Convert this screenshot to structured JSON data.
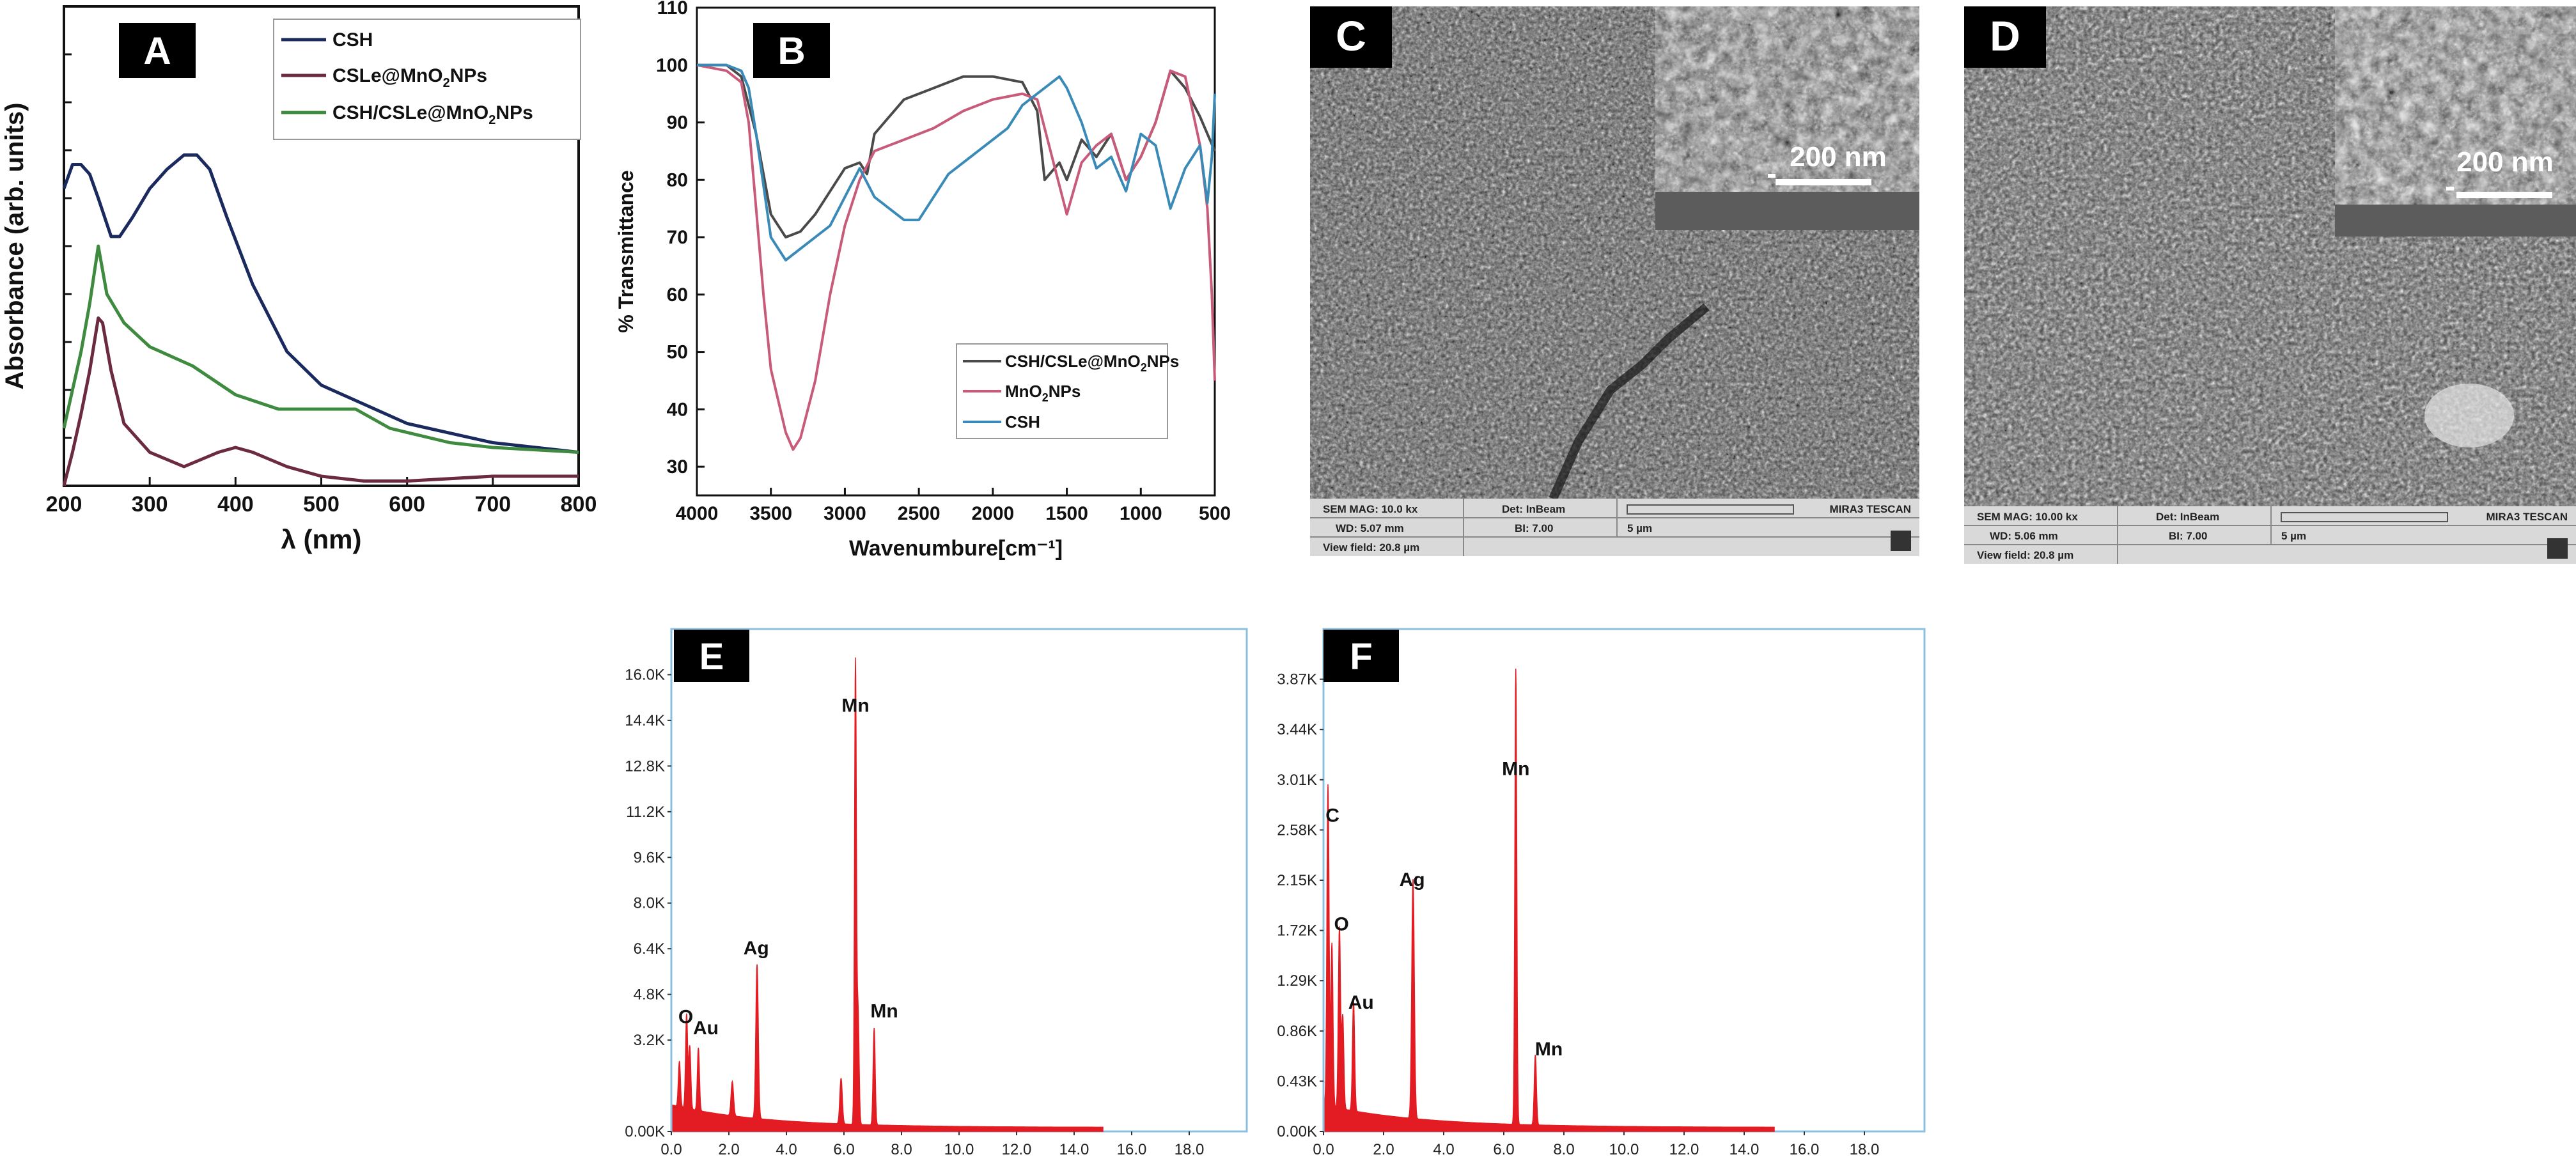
{
  "panel_labels": {
    "a": "A",
    "b": "B",
    "c": "C",
    "d": "D",
    "e": "E",
    "f": "F"
  },
  "colors": {
    "csh_uv": "#1b2a5e",
    "cslemno2_uv": "#6b2a3e",
    "cshcsle_uv": "#3e8a3e",
    "ftir_csh_cslemno2": "#4a4a4a",
    "ftir_mno2": "#c85a7a",
    "ftir_csh": "#3a8ab8",
    "eds_red": "#e31c23",
    "eds_frame": "#8cc0e0"
  },
  "sem": {
    "c": {
      "scale_inset": "200 nm",
      "footer": {
        "mag": "SEM MAG: 10.0 kx",
        "det": "Det: InBeam",
        "wd": "WD: 5.07 mm",
        "bi": "BI: 7.00",
        "vf": "View field: 20.8 µm",
        "scale": "5 µm",
        "brand": "MIRA3 TESCAN"
      }
    },
    "d": {
      "scale_inset": "200 nm",
      "footer": {
        "mag": "SEM MAG: 10.00 kx",
        "det": "Det: InBeam",
        "wd": "WD: 5.06 mm",
        "bi": "BI: 7.00",
        "vf": "View field: 20.8 µm",
        "scale": "5 µm",
        "brand": "MIRA3 TESCAN"
      }
    }
  },
  "chart_data": [
    {
      "id": "A",
      "type": "line",
      "xlabel": "λ (nm)",
      "ylabel": "Absorbance (arb. units)",
      "xlim": [
        200,
        800
      ],
      "xticks": [
        200,
        300,
        400,
        500,
        600,
        700,
        800
      ],
      "ylim": [
        0,
        1
      ],
      "legend_position": "top-right",
      "series": [
        {
          "name": "CSH",
          "color": "#1b2a5e",
          "x": [
            200,
            210,
            220,
            230,
            240,
            255,
            265,
            280,
            300,
            320,
            340,
            355,
            370,
            390,
            420,
            460,
            500,
            550,
            600,
            700,
            800
          ],
          "y": [
            0.62,
            0.67,
            0.67,
            0.65,
            0.6,
            0.52,
            0.52,
            0.56,
            0.62,
            0.66,
            0.69,
            0.69,
            0.66,
            0.56,
            0.42,
            0.28,
            0.21,
            0.17,
            0.13,
            0.09,
            0.07
          ]
        },
        {
          "name": "CSLe@MnO2NPs",
          "color": "#6b2a3e",
          "x": [
            200,
            210,
            220,
            230,
            240,
            245,
            255,
            270,
            300,
            340,
            380,
            400,
            420,
            460,
            500,
            550,
            600,
            700,
            800
          ],
          "y": [
            0.0,
            0.07,
            0.15,
            0.24,
            0.35,
            0.34,
            0.24,
            0.13,
            0.07,
            0.04,
            0.07,
            0.08,
            0.07,
            0.04,
            0.02,
            0.01,
            0.01,
            0.02,
            0.02
          ]
        },
        {
          "name": "CSH/CSLe@MnO2NPs",
          "color": "#3e8a3e",
          "x": [
            200,
            210,
            220,
            230,
            240,
            250,
            270,
            300,
            350,
            400,
            450,
            500,
            540,
            580,
            650,
            700,
            800
          ],
          "y": [
            0.12,
            0.2,
            0.28,
            0.38,
            0.5,
            0.4,
            0.34,
            0.29,
            0.25,
            0.19,
            0.16,
            0.16,
            0.16,
            0.12,
            0.09,
            0.08,
            0.07
          ]
        }
      ]
    },
    {
      "id": "B",
      "type": "line",
      "xlabel": "Wavenumbure[cm⁻¹]",
      "ylabel": "% Transmittance",
      "xlim": [
        4000,
        500
      ],
      "xticks": [
        4000,
        3500,
        3000,
        2500,
        2000,
        1500,
        1000,
        500
      ],
      "ylim": [
        25,
        110
      ],
      "yticks": [
        30,
        40,
        50,
        60,
        70,
        80,
        90,
        100,
        110
      ],
      "legend_position": "bottom-right",
      "series": [
        {
          "name": "CSH/CSLe@MnO2NPs",
          "color": "#4a4a4a",
          "x": [
            4000,
            3800,
            3700,
            3600,
            3500,
            3400,
            3300,
            3200,
            3100,
            3000,
            2900,
            2850,
            2800,
            2600,
            2400,
            2200,
            2000,
            1800,
            1700,
            1650,
            1550,
            1500,
            1400,
            1300,
            1200,
            1100,
            1000,
            900,
            800,
            700,
            600,
            500
          ],
          "y": [
            100,
            100,
            98,
            88,
            74,
            70,
            71,
            74,
            78,
            82,
            83,
            81,
            88,
            94,
            96,
            98,
            98,
            97,
            92,
            80,
            83,
            80,
            87,
            84,
            88,
            80,
            84,
            90,
            99,
            96,
            91,
            85
          ]
        },
        {
          "name": "MnO2NPs",
          "color": "#c85a7a",
          "x": [
            4000,
            3800,
            3700,
            3650,
            3600,
            3550,
            3500,
            3400,
            3350,
            3300,
            3200,
            3100,
            3000,
            2900,
            2800,
            2700,
            2600,
            2400,
            2200,
            2000,
            1800,
            1700,
            1600,
            1550,
            1500,
            1400,
            1300,
            1200,
            1100,
            1000,
            900,
            800,
            700,
            600,
            550,
            520,
            500
          ],
          "y": [
            100,
            99,
            97,
            90,
            75,
            60,
            47,
            36,
            33,
            35,
            45,
            60,
            72,
            80,
            85,
            86,
            87,
            89,
            92,
            94,
            95,
            94,
            84,
            79,
            74,
            83,
            86,
            88,
            80,
            84,
            90,
            99,
            98,
            86,
            75,
            60,
            45
          ]
        },
        {
          "name": "CSH",
          "color": "#3a8ab8",
          "x": [
            4000,
            3800,
            3700,
            3650,
            3600,
            3500,
            3400,
            3300,
            3200,
            3100,
            3000,
            2900,
            2800,
            2700,
            2600,
            2500,
            2300,
            2100,
            1900,
            1800,
            1700,
            1600,
            1550,
            1500,
            1400,
            1300,
            1200,
            1100,
            1000,
            900,
            800,
            700,
            600,
            550,
            520,
            500
          ],
          "y": [
            100,
            100,
            99,
            96,
            88,
            70,
            66,
            68,
            70,
            72,
            77,
            82,
            77,
            75,
            73,
            73,
            81,
            85,
            89,
            93,
            95,
            97,
            98,
            96,
            90,
            82,
            84,
            78,
            88,
            86,
            75,
            82,
            86,
            76,
            84,
            95
          ]
        }
      ]
    },
    {
      "id": "E",
      "type": "area",
      "xlim": [
        0,
        20
      ],
      "xticks": [
        "0.0",
        "2.0",
        "4.0",
        "6.0",
        "8.0",
        "10.0",
        "12.0",
        "14.0",
        "16.0",
        "18.0"
      ],
      "ylim": [
        0,
        17.6
      ],
      "yticks": [
        "0.00K",
        "3.2K",
        "4.8K",
        "6.4K",
        "8.0K",
        "9.6K",
        "11.2K",
        "12.8K",
        "14.4K",
        "16.0K"
      ],
      "ytick_values": [
        0,
        3.2,
        4.8,
        6.4,
        8.0,
        9.6,
        11.2,
        12.8,
        14.4,
        16.0
      ],
      "peaks": [
        {
          "x": 0.28,
          "y": 1.6,
          "w": 0.05
        },
        {
          "x": 0.53,
          "y": 3.3,
          "w": 0.05
        },
        {
          "x": 0.64,
          "y": 2.2,
          "w": 0.05
        },
        {
          "x": 0.94,
          "y": 2.2,
          "w": 0.05
        },
        {
          "x": 2.12,
          "y": 1.2,
          "w": 0.06
        },
        {
          "x": 2.98,
          "y": 5.4,
          "w": 0.06
        },
        {
          "x": 5.9,
          "y": 1.6,
          "w": 0.06
        },
        {
          "x": 6.4,
          "y": 16.2,
          "w": 0.045
        },
        {
          "x": 6.49,
          "y": 4.0,
          "w": 0.05
        },
        {
          "x": 7.05,
          "y": 3.4,
          "w": 0.05
        }
      ],
      "annotations": [
        {
          "label": "O",
          "x": 0.5,
          "y": 3.8
        },
        {
          "label": "Au",
          "x": 1.2,
          "y": 3.4
        },
        {
          "label": "Ag",
          "x": 2.95,
          "y": 6.2
        },
        {
          "label": "Mn",
          "x": 6.4,
          "y": 14.7
        },
        {
          "label": "Mn",
          "x": 7.4,
          "y": 4.0
        }
      ]
    },
    {
      "id": "F",
      "type": "area",
      "xlim": [
        0,
        20
      ],
      "xticks": [
        "0.0",
        "2.0",
        "4.0",
        "6.0",
        "8.0",
        "10.0",
        "12.0",
        "14.0",
        "16.0",
        "18.0"
      ],
      "ylim": [
        0,
        4.3
      ],
      "yticks": [
        "0.00K",
        "0.43K",
        "0.86K",
        "1.29K",
        "1.72K",
        "2.15K",
        "2.58K",
        "3.01K",
        "3.44K",
        "3.87K"
      ],
      "ytick_values": [
        0,
        0.43,
        0.86,
        1.29,
        1.72,
        2.15,
        2.58,
        3.01,
        3.44,
        3.87
      ],
      "peaks": [
        {
          "x": 0.15,
          "y": 2.75,
          "w": 0.05
        },
        {
          "x": 0.28,
          "y": 1.4,
          "w": 0.05
        },
        {
          "x": 0.53,
          "y": 1.55,
          "w": 0.05
        },
        {
          "x": 0.64,
          "y": 0.8,
          "w": 0.05
        },
        {
          "x": 1.0,
          "y": 0.95,
          "w": 0.05
        },
        {
          "x": 2.98,
          "y": 2.05,
          "w": 0.06
        },
        {
          "x": 6.4,
          "y": 3.9,
          "w": 0.045
        },
        {
          "x": 7.05,
          "y": 0.6,
          "w": 0.05
        }
      ],
      "annotations": [
        {
          "label": "C",
          "x": 0.3,
          "y": 2.65
        },
        {
          "label": "O",
          "x": 0.6,
          "y": 1.72
        },
        {
          "label": "Au",
          "x": 1.25,
          "y": 1.05
        },
        {
          "label": "Ag",
          "x": 2.95,
          "y": 2.1
        },
        {
          "label": "Mn",
          "x": 6.4,
          "y": 3.05
        },
        {
          "label": "Mn",
          "x": 7.5,
          "y": 0.65
        }
      ]
    }
  ]
}
